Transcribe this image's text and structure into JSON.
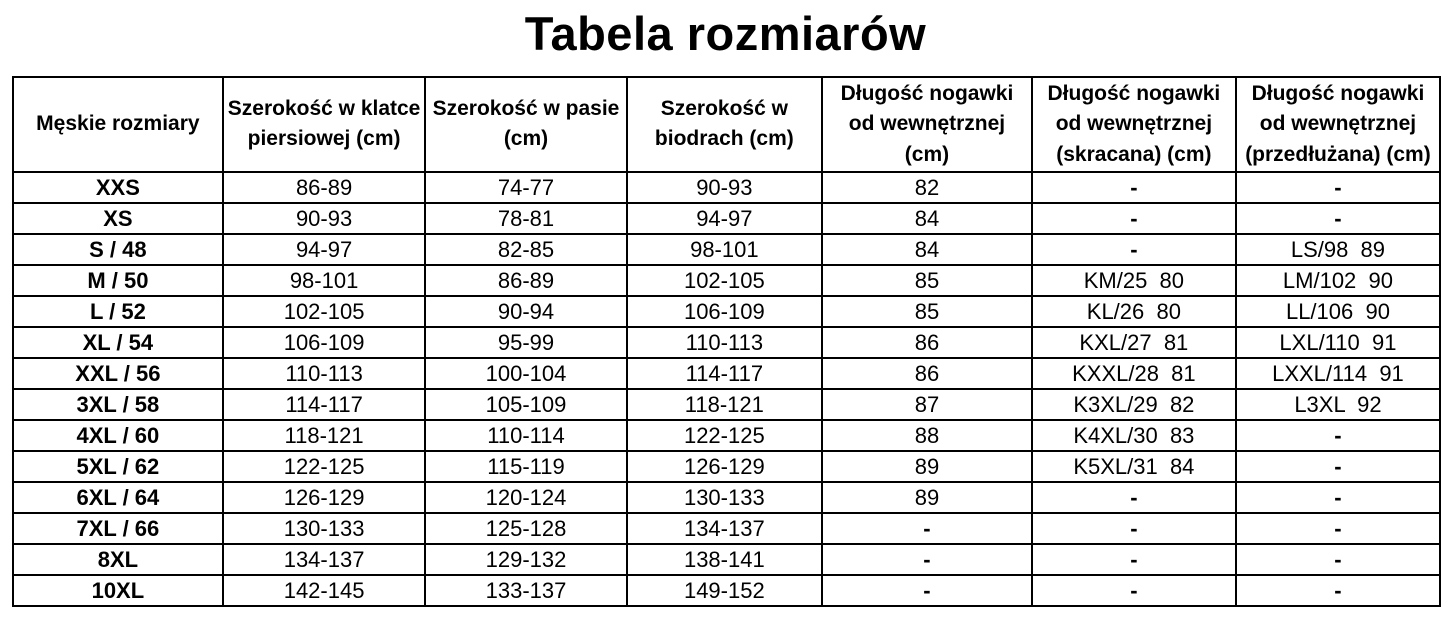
{
  "title": "Tabela rozmiarów",
  "colors": {
    "background": "#ffffff",
    "border": "#000000",
    "text": "#000000"
  },
  "table": {
    "headers": [
      "Męskie rozmiary",
      "Szerokość w klatce\npiersiowej (cm)",
      "Szerokość w pasie\n(cm)",
      "Szerokość w\nbiodrach (cm)",
      "Długość nogawki\nod wewnętrznej\n(cm)",
      "Długość nogawki\nod wewnętrznej\n(skracana) (cm)",
      "Długość nogawki\nod wewnętrznej\n(przedłużana) (cm)"
    ],
    "rows": [
      [
        "XXS",
        "86-89",
        "74-77",
        "90-93",
        "82",
        "-",
        "-"
      ],
      [
        "XS",
        "90-93",
        "78-81",
        "94-97",
        "84",
        "-",
        "-"
      ],
      [
        "S / 48",
        "94-97",
        "82-85",
        "98-101",
        "84",
        "-",
        "LS/98  89"
      ],
      [
        "M / 50",
        "98-101",
        "86-89",
        "102-105",
        "85",
        "KM/25  80",
        "LM/102  90"
      ],
      [
        "L / 52",
        "102-105",
        "90-94",
        "106-109",
        "85",
        "KL/26  80",
        "LL/106  90"
      ],
      [
        "XL / 54",
        "106-109",
        "95-99",
        "110-113",
        "86",
        "KXL/27  81",
        "LXL/110  91"
      ],
      [
        "XXL / 56",
        "110-113",
        "100-104",
        "114-117",
        "86",
        "KXXL/28  81",
        "LXXL/114  91"
      ],
      [
        "3XL / 58",
        "114-117",
        "105-109",
        "118-121",
        "87",
        "K3XL/29  82",
        "L3XL  92"
      ],
      [
        "4XL / 60",
        "118-121",
        "110-114",
        "122-125",
        "88",
        "K4XL/30  83",
        "-"
      ],
      [
        "5XL / 62",
        "122-125",
        "115-119",
        "126-129",
        "89",
        "K5XL/31  84",
        "-"
      ],
      [
        "6XL / 64",
        "126-129",
        "120-124",
        "130-133",
        "89",
        "-",
        "-"
      ],
      [
        "7XL / 66",
        "130-133",
        "125-128",
        "134-137",
        "-",
        "-",
        "-"
      ],
      [
        "8XL",
        "134-137",
        "129-132",
        "138-141",
        "-",
        "-",
        "-"
      ],
      [
        "10XL",
        "142-145",
        "133-137",
        "149-152",
        "-",
        "-",
        "-"
      ]
    ]
  }
}
